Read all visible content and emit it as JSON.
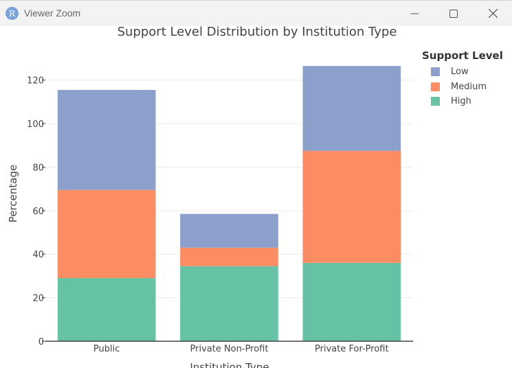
{
  "window": {
    "app_icon_letter": "R",
    "title": "Viewer Zoom",
    "minimize_icon": "minimize-icon",
    "maximize_icon": "maximize-icon",
    "close_icon": "close-icon"
  },
  "chart_data": {
    "type": "bar",
    "stacked": true,
    "title": "Support Level Distribution by Institution Type",
    "xlabel": "Institution Type",
    "ylabel": "Percentage",
    "categories": [
      "Public",
      "Private Non-Profit",
      "Private For-Profit"
    ],
    "ylim": [
      0,
      130
    ],
    "yticks": [
      0,
      20,
      40,
      60,
      80,
      100,
      120
    ],
    "grid": true,
    "legend_title": "Support Level",
    "legend_position": "top-right",
    "legend_order": [
      "Low",
      "Medium",
      "High"
    ],
    "series": [
      {
        "name": "High",
        "color": "#66c2a5",
        "values": [
          29,
          34.5,
          36
        ]
      },
      {
        "name": "Medium",
        "color": "#fc8d62",
        "values": [
          40.5,
          8.5,
          51.5
        ]
      },
      {
        "name": "Low",
        "color": "#8da0cb",
        "values": [
          46,
          15.5,
          39
        ]
      }
    ]
  }
}
